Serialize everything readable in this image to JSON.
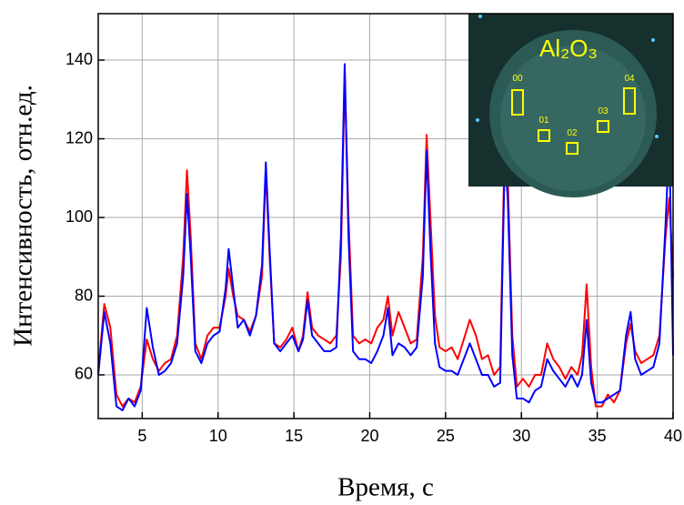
{
  "chart_data": {
    "type": "line",
    "x_label": "Время, с",
    "y_label": "Интенсивность, отн.ед.",
    "xlim": [
      2.1,
      40
    ],
    "ylim": [
      48.9,
      151.8
    ],
    "xticks": [
      5,
      10,
      15,
      20,
      25,
      30,
      35,
      40
    ],
    "yticks": [
      60,
      80,
      100,
      120,
      140
    ],
    "grid": true,
    "inset": {
      "title": "Al₂O₃",
      "boxes": [
        "00",
        "01",
        "02",
        "03",
        "04"
      ]
    },
    "x": [
      2.1,
      2.5,
      2.9,
      3.3,
      3.7,
      4.1,
      4.5,
      4.9,
      5.3,
      5.7,
      6.1,
      6.5,
      6.9,
      7.3,
      7.7,
      7.95,
      8.2,
      8.5,
      8.9,
      9.3,
      9.7,
      10.1,
      10.5,
      10.7,
      11.0,
      11.3,
      11.7,
      12.1,
      12.5,
      12.9,
      13.15,
      13.4,
      13.7,
      14.1,
      14.5,
      14.9,
      15.3,
      15.6,
      15.9,
      16.2,
      16.6,
      17.0,
      17.4,
      17.8,
      18.1,
      18.35,
      18.6,
      18.9,
      19.3,
      19.7,
      20.1,
      20.5,
      20.9,
      21.2,
      21.5,
      21.9,
      22.3,
      22.7,
      23.1,
      23.5,
      23.75,
      24.0,
      24.3,
      24.6,
      25.0,
      25.4,
      25.8,
      26.2,
      26.6,
      27.0,
      27.4,
      27.8,
      28.2,
      28.6,
      28.9,
      29.1,
      29.4,
      29.7,
      30.1,
      30.5,
      30.9,
      31.3,
      31.7,
      32.1,
      32.5,
      32.9,
      33.3,
      33.7,
      34.0,
      34.3,
      34.6,
      34.9,
      35.3,
      35.7,
      36.1,
      36.5,
      36.9,
      37.2,
      37.5,
      37.9,
      38.3,
      38.7,
      39.1,
      39.5,
      39.75,
      40.0
    ],
    "series": [
      {
        "color": "#ff0000",
        "values": [
          61,
          78,
          72,
          55,
          52,
          54,
          53,
          57,
          69,
          64,
          61,
          63,
          64,
          70,
          90,
          112,
          95,
          68,
          64,
          70,
          72,
          72,
          80,
          87,
          80,
          75,
          74,
          71,
          75,
          85,
          112,
          90,
          68,
          67,
          69,
          72,
          66,
          70,
          81,
          72,
          70,
          69,
          68,
          70,
          90,
          136,
          100,
          70,
          68,
          69,
          68,
          72,
          74,
          80,
          70,
          76,
          72,
          68,
          69,
          90,
          121,
          100,
          75,
          67,
          66,
          67,
          64,
          69,
          74,
          70,
          64,
          65,
          60,
          62,
          120,
          110,
          70,
          57,
          59,
          57,
          60,
          60,
          68,
          64,
          62,
          59,
          62,
          60,
          65,
          83,
          62,
          52,
          52,
          55,
          53,
          56,
          68,
          73,
          66,
          63,
          64,
          65,
          70,
          95,
          105,
          85
        ]
      },
      {
        "color": "#0000ff",
        "values": [
          60,
          76,
          68,
          52,
          51,
          54,
          52,
          56,
          77,
          67,
          60,
          61,
          63,
          68,
          85,
          106,
          90,
          66,
          63,
          68,
          70,
          71,
          82,
          92,
          82,
          72,
          74,
          70,
          75,
          88,
          114,
          92,
          68,
          66,
          68,
          70,
          66,
          69,
          79,
          70,
          68,
          66,
          66,
          67,
          95,
          139,
          95,
          66,
          64,
          64,
          63,
          66,
          70,
          77,
          65,
          68,
          67,
          65,
          67,
          85,
          117,
          92,
          68,
          62,
          61,
          61,
          60,
          64,
          68,
          64,
          60,
          60,
          57,
          58,
          115,
          105,
          65,
          54,
          54,
          53,
          56,
          57,
          64,
          61,
          59,
          57,
          60,
          57,
          60,
          74,
          58,
          53,
          53,
          54,
          55,
          56,
          70,
          76,
          64,
          60,
          61,
          62,
          68,
          98,
          120,
          65
        ]
      }
    ]
  }
}
